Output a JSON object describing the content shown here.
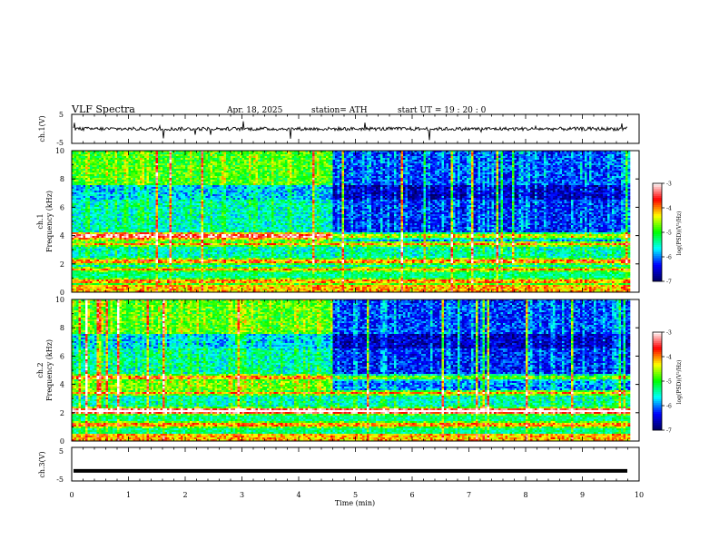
{
  "header": {
    "title": "VLF  Spectra",
    "date": "Apr. 18, 2025",
    "station": "station= ATH",
    "start": "start  UT  =   19 : 20 : 0"
  },
  "chart_data": [
    {
      "type": "line",
      "panel": "ch1-waveform",
      "ylabel": "ch.1(V)",
      "ylim": [
        -5,
        5
      ],
      "yticks": [
        "5",
        "-5"
      ],
      "xlim": [
        0,
        10
      ],
      "data_end_min": 9.8,
      "baseline": 0,
      "noise_amplitude": 1.2,
      "spike_amplitude": 4
    },
    {
      "type": "heatmap",
      "panel": "ch1-spectrogram",
      "ylabel_top": "ch.1",
      "ylabel": "Frequency  (kHz)",
      "ylim": [
        0,
        10
      ],
      "yticks": [
        "0",
        "2",
        "4",
        "6",
        "8",
        "10"
      ],
      "xlim": [
        0,
        10
      ],
      "data_end_min": 9.8,
      "transition_min": 4.6,
      "colorbar_label": "log(PSD)(V²/Hz)",
      "colorbar_ticks": [
        "-3",
        "-4",
        "-5",
        "-6",
        "-7"
      ],
      "colorbar_range": [
        -7,
        -3
      ],
      "bands_khz": [
        0.3,
        0.8,
        1.6,
        2.2,
        3.4,
        4.0
      ]
    },
    {
      "type": "heatmap",
      "panel": "ch2-spectrogram",
      "ylabel_top": "ch.2",
      "ylabel": "Frequency  (kHz)",
      "ylim": [
        0,
        10
      ],
      "yticks": [
        "0",
        "2",
        "4",
        "6",
        "8",
        "10"
      ],
      "xlim": [
        0,
        10
      ],
      "data_end_min": 9.8,
      "transition_min": 4.6,
      "colorbar_label": "log(PSD)(V²/Hz)",
      "colorbar_ticks": [
        "-3",
        "-4",
        "-5",
        "-6",
        "-7"
      ],
      "colorbar_range": [
        -7,
        -3
      ],
      "bands_khz": [
        0.3,
        1.2,
        2.0,
        2.2,
        3.4,
        4.5
      ]
    },
    {
      "type": "line",
      "panel": "ch3-waveform",
      "ylabel": "ch.3(V)",
      "ylim": [
        -5,
        5
      ],
      "yticks": [
        "5",
        "-5"
      ],
      "xlim": [
        0,
        10
      ],
      "data_end_min": 9.8,
      "baseline": -2
    }
  ],
  "xaxis": {
    "label": "Time  (min)",
    "ticks": [
      "0",
      "1",
      "2",
      "3",
      "4",
      "5",
      "6",
      "7",
      "8",
      "9",
      "10"
    ]
  },
  "colors": {
    "frame": "#000000",
    "trace": "#000000",
    "colormap": [
      "#000060",
      "#0000ff",
      "#00ffff",
      "#00ff00",
      "#ffff00",
      "#ff0000",
      "#ffffff"
    ]
  }
}
